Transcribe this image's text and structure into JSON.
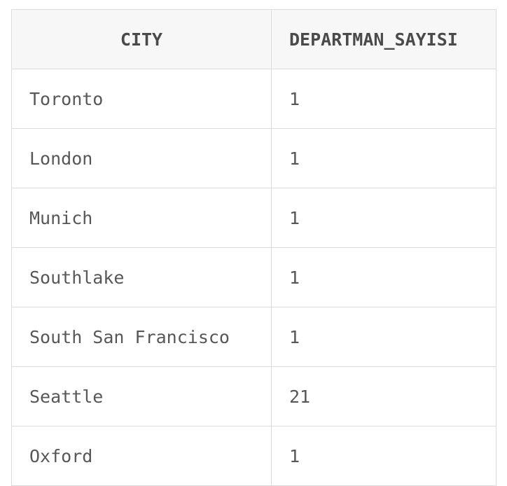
{
  "table": {
    "columns": [
      "CITY",
      "DEPARTMAN_SAYISI"
    ],
    "rows": [
      [
        "Toronto",
        "1"
      ],
      [
        "London",
        "1"
      ],
      [
        "Munich",
        "1"
      ],
      [
        "Southlake",
        "1"
      ],
      [
        "South San Francisco",
        "1"
      ],
      [
        "Seattle",
        "21"
      ],
      [
        "Oxford",
        "1"
      ]
    ]
  }
}
